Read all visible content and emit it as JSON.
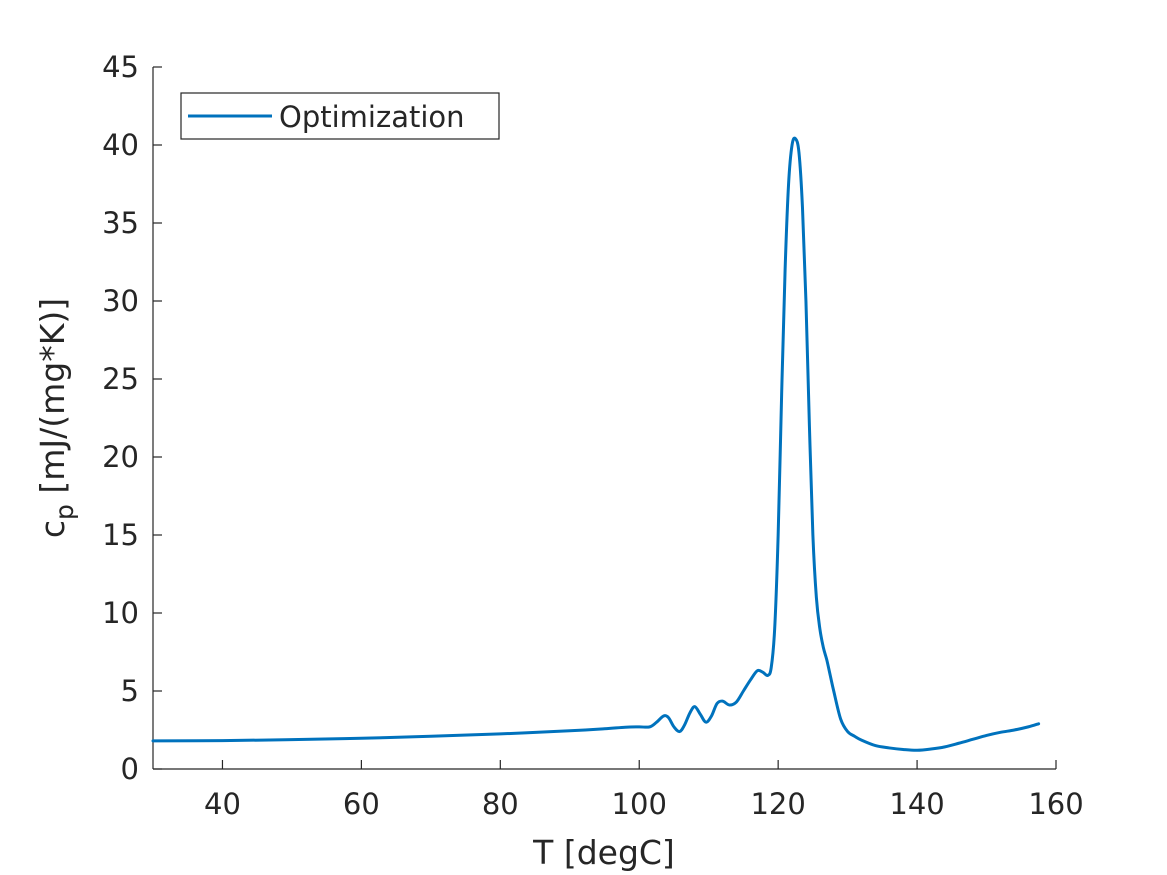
{
  "chart_data": {
    "type": "line",
    "xlabel": "T [degC]",
    "ylabel_main": "c",
    "ylabel_sub": "p",
    "ylabel_units": " [mJ/(mg*K)]",
    "xlim": [
      30,
      160
    ],
    "ylim": [
      0,
      45
    ],
    "xticks": [
      40,
      60,
      80,
      100,
      120,
      140,
      160
    ],
    "yticks": [
      0,
      5,
      10,
      15,
      20,
      25,
      30,
      35,
      40,
      45
    ],
    "grid": false,
    "legend_position": "top-left",
    "series": [
      {
        "name": "Optimization",
        "color": "#0072BD",
        "x": [
          30,
          40,
          50,
          60,
          70,
          80,
          90,
          95,
          98,
          100,
          101.5,
          102.5,
          103.5,
          104.2,
          105,
          105.8,
          106.5,
          107.3,
          108,
          108.8,
          109.6,
          110.4,
          111.2,
          112,
          113,
          114,
          115,
          116,
          117,
          117.8,
          118.5,
          119,
          119.5,
          120,
          120.5,
          121,
          121.5,
          122,
          122.5,
          123,
          123.5,
          124,
          124.5,
          125,
          125.5,
          126,
          126.5,
          127,
          127.5,
          128,
          129,
          130,
          131,
          132,
          134,
          136,
          138,
          140,
          142,
          144,
          146,
          148,
          150,
          152,
          154,
          156,
          157.5
        ],
        "y": [
          1.8,
          1.82,
          1.88,
          1.97,
          2.1,
          2.25,
          2.45,
          2.58,
          2.68,
          2.7,
          2.7,
          3.0,
          3.4,
          3.3,
          2.7,
          2.4,
          2.8,
          3.6,
          4.0,
          3.5,
          3.0,
          3.4,
          4.2,
          4.35,
          4.1,
          4.3,
          5.0,
          5.7,
          6.3,
          6.2,
          6.0,
          6.5,
          9.0,
          15.0,
          24.0,
          32.0,
          37.5,
          40.0,
          40.4,
          39.5,
          36.0,
          30.0,
          22.0,
          15.0,
          11.0,
          9.0,
          7.8,
          7.0,
          6.0,
          5.0,
          3.2,
          2.4,
          2.1,
          1.85,
          1.5,
          1.35,
          1.25,
          1.2,
          1.28,
          1.42,
          1.65,
          1.9,
          2.15,
          2.35,
          2.5,
          2.7,
          2.9
        ]
      }
    ]
  }
}
